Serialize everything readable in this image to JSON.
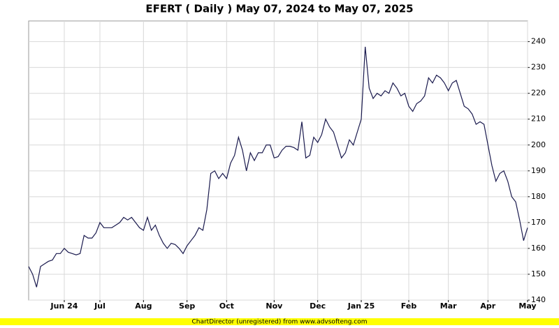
{
  "chart_data": {
    "type": "line",
    "title": "EFERT ( Daily ) May 07, 2024 to May 07, 2025",
    "footer": "ChartDirector (unregistered) from www.advsofteng.com",
    "categories": [
      null,
      null,
      null,
      null,
      null,
      null,
      null,
      null,
      null,
      "Jun 24",
      null,
      null,
      null,
      null,
      null,
      null,
      null,
      null,
      "Jul",
      null,
      null,
      null,
      null,
      null,
      null,
      null,
      null,
      null,
      null,
      "Aug",
      null,
      null,
      null,
      null,
      null,
      null,
      null,
      null,
      null,
      null,
      "Sep",
      null,
      null,
      null,
      null,
      null,
      null,
      null,
      null,
      null,
      "Oct",
      null,
      null,
      null,
      null,
      null,
      null,
      null,
      null,
      null,
      null,
      null,
      "Nov",
      null,
      null,
      null,
      null,
      null,
      null,
      null,
      null,
      null,
      null,
      "Dec",
      null,
      null,
      null,
      null,
      null,
      null,
      null,
      null,
      null,
      null,
      "Jan 25",
      null,
      null,
      null,
      null,
      null,
      null,
      null,
      null,
      null,
      null,
      null,
      "Feb",
      null,
      null,
      null,
      null,
      null,
      null,
      null,
      null,
      null,
      "Mar",
      null,
      null,
      null,
      null,
      null,
      null,
      null,
      null,
      null,
      "Apr",
      null,
      null,
      null,
      null,
      null,
      null,
      null,
      null,
      null,
      "May"
    ],
    "values": [
      153,
      150,
      145,
      153,
      154,
      155,
      155.5,
      158,
      158,
      160,
      158.5,
      158,
      157.5,
      158,
      165,
      164,
      164,
      166,
      170,
      168,
      168,
      168,
      169,
      170,
      172,
      171,
      172,
      170,
      168,
      167,
      172,
      167,
      169,
      165,
      162,
      160,
      162,
      161.5,
      160,
      158,
      161,
      163,
      165,
      168,
      167,
      175,
      189,
      190,
      187,
      189,
      187,
      193,
      196,
      203,
      198,
      190,
      197,
      194,
      197,
      197,
      200,
      200,
      195,
      195.5,
      198,
      199.5,
      199.5,
      199,
      198,
      209,
      195,
      196,
      203,
      201,
      204,
      210,
      207,
      205,
      200,
      195,
      197,
      202,
      200,
      205,
      210,
      238,
      222,
      218,
      220,
      219,
      221,
      220,
      224,
      222,
      219,
      220,
      215,
      213,
      216,
      217,
      219,
      226,
      224,
      227,
      226,
      224,
      221,
      224,
      225,
      220,
      215,
      214,
      212,
      208,
      209,
      208,
      200,
      192,
      186,
      189,
      190,
      186,
      180,
      178,
      171,
      163,
      168
    ],
    "color": "#1a1a4e",
    "ylim": [
      140,
      248
    ],
    "yticks": [
      140,
      150,
      160,
      170,
      180,
      190,
      200,
      210,
      220,
      230,
      240
    ],
    "grid": true
  }
}
